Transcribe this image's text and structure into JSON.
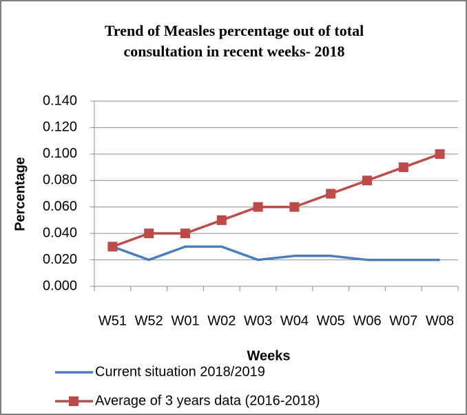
{
  "chart_data": {
    "type": "line",
    "title": [
      "Trend of Measles percentage out of total",
      "consultation in recent weeks- 2018"
    ],
    "y_label": "Percentage",
    "x_label": "Weeks",
    "categories": [
      "W51",
      "W52",
      "W01",
      "W02",
      "W03",
      "W04",
      "W05",
      "W06",
      "W07",
      "W08"
    ],
    "series": [
      {
        "name": "Current situation 2018/2019",
        "color": "#4a7ebb",
        "marker": "none",
        "values": [
          0.03,
          0.02,
          0.03,
          0.03,
          0.02,
          0.023,
          0.023,
          0.02,
          0.02,
          0.02
        ]
      },
      {
        "name": "Average of 3 years data (2016-2018)",
        "color": "#be4b48",
        "marker": "square",
        "values": [
          0.03,
          0.04,
          0.04,
          0.05,
          0.06,
          0.06,
          0.07,
          0.08,
          0.09,
          0.1
        ]
      }
    ],
    "ylim": [
      0,
      0.14
    ],
    "yticks": [
      {
        "value": 0,
        "label": "0.000"
      },
      {
        "value": 0.02,
        "label": "0.020"
      },
      {
        "value": 0.04,
        "label": "0.040"
      },
      {
        "value": 0.06,
        "label": "0.060"
      },
      {
        "value": 0.08,
        "label": "0.080"
      },
      {
        "value": 0.1,
        "label": "0.100"
      },
      {
        "value": 0.12,
        "label": "0.120"
      },
      {
        "value": 0.14,
        "label": "0.140"
      }
    ],
    "grid": true,
    "legend": "bottom"
  }
}
